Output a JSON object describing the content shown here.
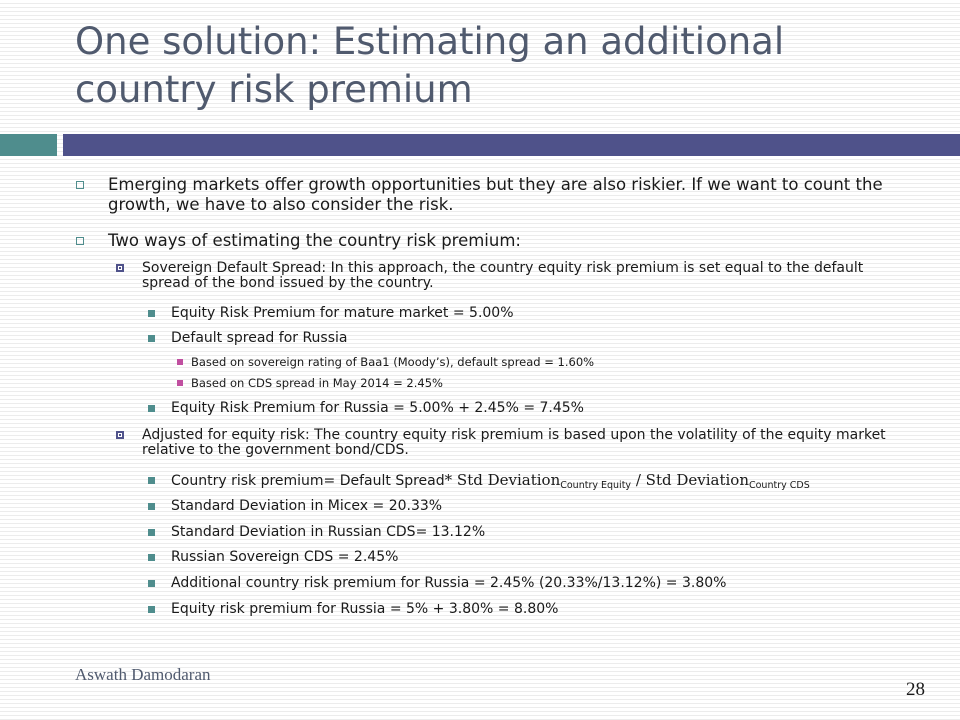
{
  "slide": {
    "title": "One solution: Estimating an additional country risk premium",
    "bullets": [
      "Emerging markets offer growth opportunities but they are also riskier. If we want to count the growth, we have to also consider the risk.",
      "Two ways of estimating the country risk premium:"
    ],
    "approach1": {
      "heading": "Sovereign Default Spread: In this approach, the country equity risk premium is set equal to the default spread of the bond issued by the country.",
      "item1": "Equity Risk Premium for mature market = 5.00%",
      "item2": "Default spread for Russia",
      "sub1": "Based on sovereign rating of Baa1 (Moody’s), default spread = 1.60%",
      "sub2": "Based on CDS spread in May 2014 = 2.45%",
      "item3": "Equity Risk Premium for Russia = 5.00% + 2.45% = 7.45%"
    },
    "approach2": {
      "heading": "Adjusted for equity risk: The country equity risk premium is based upon the volatility of the equity market relative to the government bond/CDS.",
      "formula": {
        "prefix": "Country risk premium= Default Spread",
        "std_dev": "Std Deviation",
        "sub_equity": "Country Equity",
        "slash": "/",
        "sub_cds": "Country CDS"
      },
      "items": [
        "Standard Deviation in Micex = 20.33%",
        "Standard Deviation in Russian CDS= 13.12%",
        "Russian Sovereign CDS = 2.45%",
        "Additional country risk premium for Russia = 2.45% (20.33%/13.12%) = 3.80%",
        "Equity risk premium for Russia = 5% + 3.80% = 8.80%"
      ]
    },
    "footer": {
      "author": "Aswath Damodaran",
      "page_number": "28"
    },
    "colors": {
      "title": "#505a6e",
      "bar_left": "#4f8d8d",
      "bar_right": "#4f528a",
      "sub_bullet": "#c04fa0"
    }
  }
}
